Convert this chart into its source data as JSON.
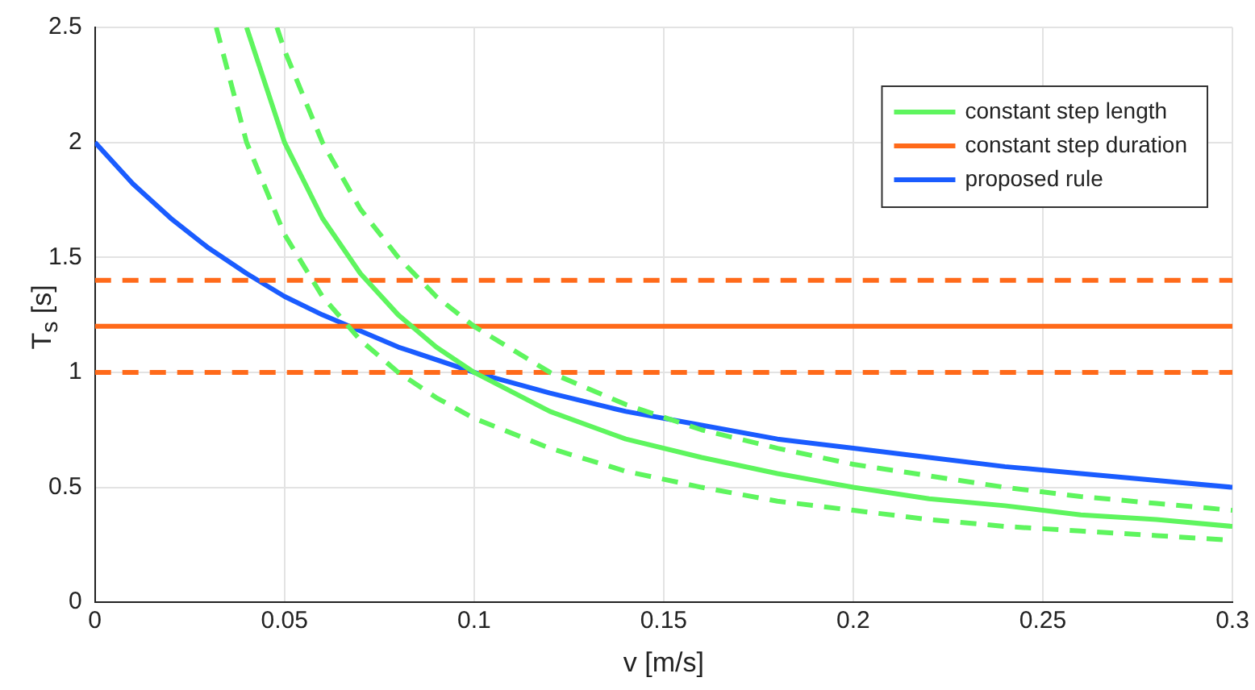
{
  "chart_data": {
    "type": "line",
    "xlabel": "v [m/s]",
    "ylabel": "T$_{s}$ [s]",
    "xlim": [
      0,
      0.3
    ],
    "xticks": [
      0,
      0.05,
      0.1,
      0.15,
      0.2,
      0.25,
      0.3
    ],
    "ylim": [
      0,
      2.5
    ],
    "yticks": [
      0,
      0.5,
      1,
      1.5,
      2,
      2.5
    ],
    "grid": true,
    "legend": "top right",
    "marker": "none",
    "series": [
      {
        "name": "constant step length",
        "color": "#5ef55e",
        "line_style": "solid",
        "x": [
          0.04,
          0.05,
          0.06,
          0.07,
          0.08,
          0.09,
          0.1,
          0.12,
          0.14,
          0.16,
          0.18,
          0.2,
          0.22,
          0.24,
          0.26,
          0.28,
          0.3
        ],
        "values": [
          2.5,
          2,
          1.67,
          1.43,
          1.25,
          1.11,
          1,
          0.83,
          0.71,
          0.63,
          0.56,
          0.5,
          0.45,
          0.42,
          0.38,
          0.36,
          0.33
        ]
      },
      {
        "color": "#5ef55e",
        "line_style": "dashed",
        "x": [
          0.048,
          0.05,
          0.06,
          0.07,
          0.08,
          0.09,
          0.1,
          0.12,
          0.14,
          0.16,
          0.18,
          0.2,
          0.22,
          0.24,
          0.26,
          0.28,
          0.3
        ],
        "values": [
          2.5,
          2.4,
          2,
          1.71,
          1.5,
          1.33,
          1.2,
          1,
          0.86,
          0.75,
          0.67,
          0.6,
          0.55,
          0.5,
          0.46,
          0.43,
          0.4
        ]
      },
      {
        "color": "#5ef55e",
        "line_style": "dashed",
        "x": [
          0.032,
          0.04,
          0.05,
          0.06,
          0.07,
          0.08,
          0.09,
          0.1,
          0.12,
          0.14,
          0.16,
          0.18,
          0.2,
          0.22,
          0.24,
          0.26,
          0.28,
          0.3
        ],
        "values": [
          2.5,
          2,
          1.6,
          1.33,
          1.14,
          1,
          0.89,
          0.8,
          0.67,
          0.57,
          0.5,
          0.44,
          0.4,
          0.36,
          0.33,
          0.31,
          0.29,
          0.27
        ]
      },
      {
        "name": "constant step duration",
        "color": "#ff6a1a",
        "line_style": "solid",
        "x": [
          0,
          0.3
        ],
        "values": [
          1.2,
          1.2
        ]
      },
      {
        "color": "#ff6a1a",
        "line_style": "dashed",
        "x": [
          0,
          0.3
        ],
        "values": [
          1.4,
          1.4
        ]
      },
      {
        "color": "#ff6a1a",
        "line_style": "dashed",
        "x": [
          0,
          0.3
        ],
        "values": [
          1,
          1
        ]
      },
      {
        "name": "proposed rule",
        "color": "#1a5cff",
        "line_style": "solid",
        "x": [
          0,
          0.01,
          0.02,
          0.03,
          0.04,
          0.05,
          0.06,
          0.08,
          0.1,
          0.12,
          0.14,
          0.16,
          0.18,
          0.2,
          0.22,
          0.24,
          0.26,
          0.28,
          0.3
        ],
        "values": [
          2,
          1.82,
          1.67,
          1.54,
          1.43,
          1.33,
          1.25,
          1.11,
          1,
          0.91,
          0.83,
          0.77,
          0.71,
          0.67,
          0.63,
          0.59,
          0.56,
          0.53,
          0.5
        ]
      }
    ]
  }
}
